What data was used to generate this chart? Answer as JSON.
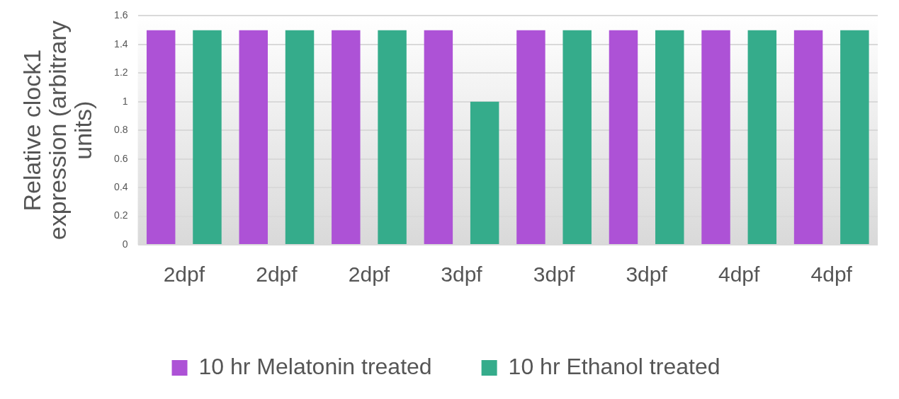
{
  "chart_data": {
    "type": "bar",
    "ylabel": "Relative clock1 expression (arbitrary units)",
    "categories": [
      "2dpf",
      "2dpf",
      "2dpf",
      "3dpf",
      "3dpf",
      "3dpf",
      "4dpf",
      "4dpf"
    ],
    "series": [
      {
        "name": "10 hr Melatonin treated",
        "color": "#ad52d6",
        "values": [
          1.5,
          1.5,
          1.5,
          1.5,
          1.5,
          1.5,
          1.5,
          1.5
        ]
      },
      {
        "name": "10 hr Ethanol treated",
        "color": "#35ac8b",
        "values": [
          1.5,
          1.5,
          1.5,
          1.0,
          1.5,
          1.5,
          1.5,
          1.5
        ]
      }
    ],
    "ylim": [
      0,
      1.6
    ],
    "yticks": [
      0,
      0.2,
      0.4,
      0.6,
      0.8,
      1,
      1.2,
      1.4,
      1.6
    ],
    "grid": "y",
    "legend": "bottom"
  }
}
